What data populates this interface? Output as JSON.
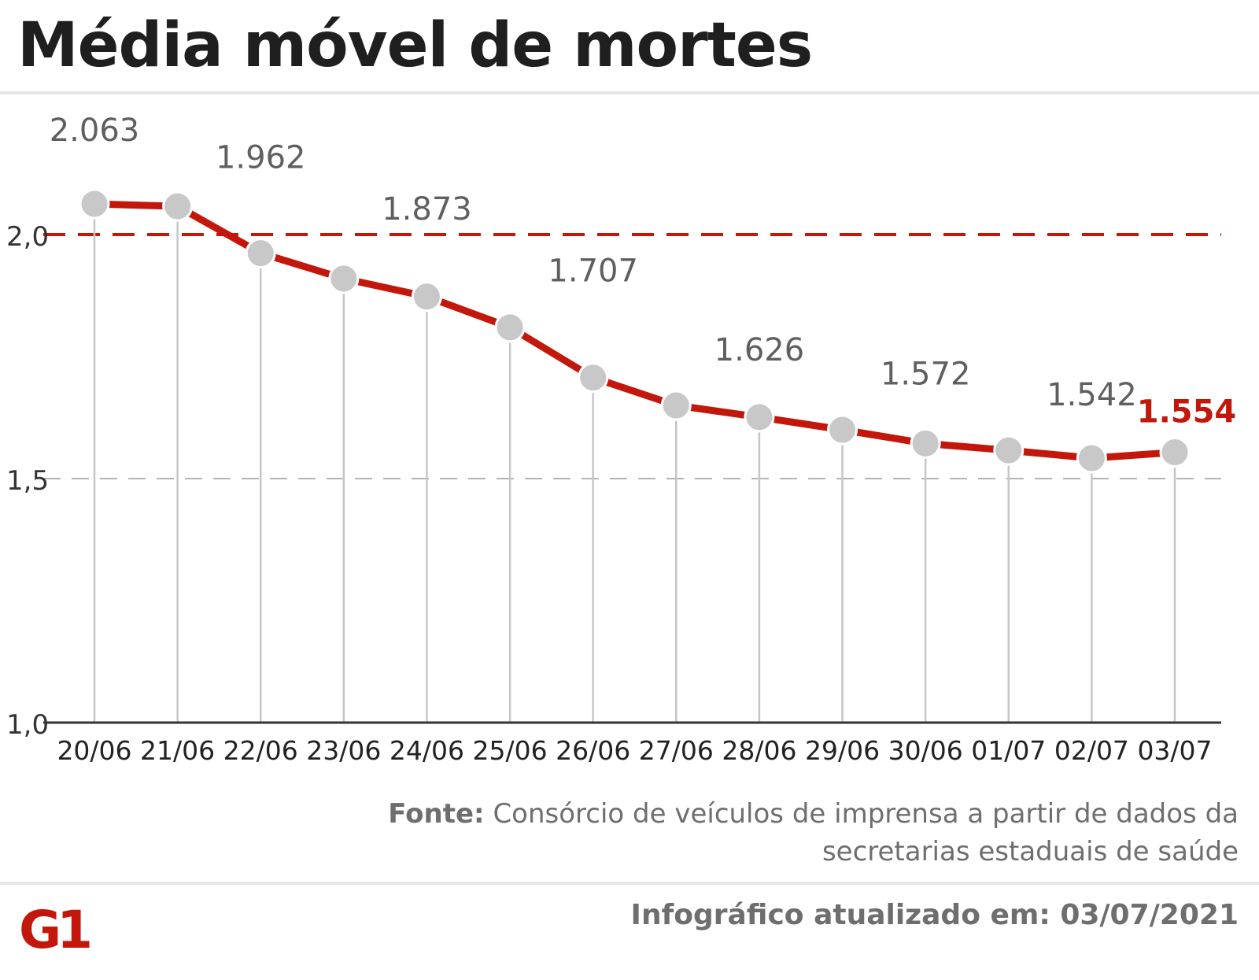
{
  "title": "Média móvel de mortes",
  "source": {
    "label": "Fonte:",
    "text": "Consórcio de veículos de imprensa a partir de dados da secretarias estaduais de saúde"
  },
  "updated": "Infográfico atualizado em: 03/07/2021",
  "logo": {
    "text": "G1",
    "color": "#c4170c"
  },
  "colors": {
    "line": "#c4170c",
    "marker": "#c8c8c8",
    "label": "#5f5f5f",
    "highlight": "#c4170c",
    "axis": "#333333"
  },
  "chart_data": {
    "type": "line",
    "x": [
      "20/06",
      "21/06",
      "22/06",
      "23/06",
      "24/06",
      "25/06",
      "26/06",
      "27/06",
      "28/06",
      "29/06",
      "30/06",
      "01/07",
      "02/07",
      "03/07"
    ],
    "series": [
      {
        "values": [
          2063,
          2058,
          1962,
          1910,
          1873,
          1810,
          1707,
          1650,
          1626,
          1600,
          1572,
          1558,
          1542,
          1554
        ]
      }
    ],
    "data_labels": [
      "2.063",
      null,
      "1.962",
      null,
      "1.873",
      null,
      "1.707",
      null,
      "1.626",
      null,
      "1.572",
      null,
      "1.542",
      "1.554"
    ],
    "highlight_last": true,
    "y_ticks": [
      {
        "value": 1000,
        "label": "1,0"
      },
      {
        "value": 1500,
        "label": "1,5"
      },
      {
        "value": 2000,
        "label": "2,0"
      }
    ],
    "ylim": [
      1000,
      2150
    ],
    "reference_lines": [
      {
        "value": 2000,
        "style": "red-dashed"
      },
      {
        "value": 1500,
        "style": "gray-dashed"
      }
    ],
    "vertical_drop_lines": true
  }
}
